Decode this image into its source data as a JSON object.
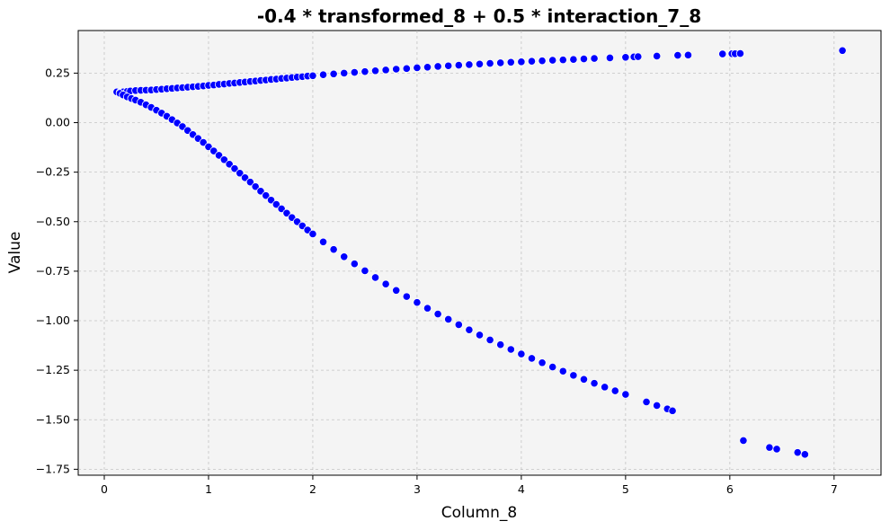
{
  "chart_data": {
    "type": "scatter",
    "title": "-0.4 * transformed_8 + 0.5 * interaction_7_8",
    "xlabel": "Column_8",
    "ylabel": "Value",
    "xlim": [
      -0.25,
      7.45
    ],
    "ylim": [
      -1.78,
      0.465
    ],
    "xticks": [
      0,
      1,
      2,
      3,
      4,
      5,
      6,
      7
    ],
    "xtick_labels": [
      "0",
      "1",
      "2",
      "3",
      "4",
      "5",
      "6",
      "7"
    ],
    "yticks": [
      0.25,
      0.0,
      -0.25,
      -0.5,
      -0.75,
      -1.0,
      -1.25,
      -1.5,
      -1.75
    ],
    "ytick_labels": [
      "0.25",
      "0.00",
      "−0.25",
      "−0.50",
      "−0.75",
      "−1.00",
      "−1.25",
      "−1.50",
      "−1.75"
    ],
    "grid": true,
    "point_color": "#0000ff",
    "background_color": "#f4f4f4",
    "series": [
      {
        "points": [
          [
            0.12,
            0.155
          ],
          [
            0.15,
            0.152
          ],
          [
            0.18,
            0.155
          ],
          [
            0.22,
            0.158
          ],
          [
            0.25,
            0.16
          ],
          [
            0.3,
            0.162
          ],
          [
            0.35,
            0.163
          ],
          [
            0.4,
            0.164
          ],
          [
            0.45,
            0.165
          ],
          [
            0.5,
            0.167
          ],
          [
            0.55,
            0.169
          ],
          [
            0.6,
            0.171
          ],
          [
            0.65,
            0.173
          ],
          [
            0.7,
            0.175
          ],
          [
            0.75,
            0.177
          ],
          [
            0.8,
            0.179
          ],
          [
            0.85,
            0.181
          ],
          [
            0.9,
            0.183
          ],
          [
            0.95,
            0.185
          ],
          [
            1.0,
            0.188
          ],
          [
            1.05,
            0.19
          ],
          [
            1.1,
            0.193
          ],
          [
            1.15,
            0.195
          ],
          [
            1.2,
            0.198
          ],
          [
            1.25,
            0.2
          ],
          [
            1.3,
            0.203
          ],
          [
            1.35,
            0.205
          ],
          [
            1.4,
            0.208
          ],
          [
            1.45,
            0.21
          ],
          [
            1.5,
            0.213
          ],
          [
            1.55,
            0.215
          ],
          [
            1.6,
            0.218
          ],
          [
            1.65,
            0.22
          ],
          [
            1.7,
            0.223
          ],
          [
            1.75,
            0.225
          ],
          [
            1.8,
            0.228
          ],
          [
            1.85,
            0.23
          ],
          [
            1.9,
            0.232
          ],
          [
            1.95,
            0.235
          ],
          [
            2.0,
            0.237
          ],
          [
            2.1,
            0.242
          ],
          [
            2.2,
            0.246
          ],
          [
            2.3,
            0.25
          ],
          [
            2.4,
            0.254
          ],
          [
            2.5,
            0.258
          ],
          [
            2.6,
            0.262
          ],
          [
            2.7,
            0.266
          ],
          [
            2.8,
            0.27
          ],
          [
            2.9,
            0.273
          ],
          [
            3.0,
            0.277
          ],
          [
            3.1,
            0.28
          ],
          [
            3.2,
            0.284
          ],
          [
            3.3,
            0.287
          ],
          [
            3.4,
            0.29
          ],
          [
            3.5,
            0.293
          ],
          [
            3.6,
            0.296
          ],
          [
            3.7,
            0.299
          ],
          [
            3.8,
            0.302
          ],
          [
            3.9,
            0.305
          ],
          [
            4.0,
            0.307
          ],
          [
            4.1,
            0.31
          ],
          [
            4.2,
            0.312
          ],
          [
            4.3,
            0.315
          ],
          [
            4.4,
            0.317
          ],
          [
            4.5,
            0.319
          ],
          [
            4.6,
            0.322
          ],
          [
            4.7,
            0.324
          ],
          [
            4.85,
            0.327
          ],
          [
            5.0,
            0.33
          ],
          [
            5.08,
            0.332
          ],
          [
            5.12,
            0.333
          ],
          [
            5.3,
            0.336
          ],
          [
            5.5,
            0.34
          ],
          [
            5.6,
            0.341
          ],
          [
            5.93,
            0.347
          ],
          [
            6.02,
            0.348
          ],
          [
            6.05,
            0.348
          ],
          [
            6.1,
            0.349
          ],
          [
            7.08,
            0.364
          ]
        ]
      },
      {
        "points": [
          [
            0.15,
            0.148
          ],
          [
            0.18,
            0.14
          ],
          [
            0.22,
            0.13
          ],
          [
            0.26,
            0.122
          ],
          [
            0.3,
            0.114
          ],
          [
            0.35,
            0.103
          ],
          [
            0.4,
            0.09
          ],
          [
            0.45,
            0.077
          ],
          [
            0.5,
            0.063
          ],
          [
            0.55,
            0.048
          ],
          [
            0.6,
            0.032
          ],
          [
            0.65,
            0.015
          ],
          [
            0.7,
            -0.002
          ],
          [
            0.75,
            -0.02
          ],
          [
            0.8,
            -0.04
          ],
          [
            0.85,
            -0.06
          ],
          [
            0.9,
            -0.08
          ],
          [
            0.95,
            -0.1
          ],
          [
            1.0,
            -0.122
          ],
          [
            1.05,
            -0.143
          ],
          [
            1.1,
            -0.165
          ],
          [
            1.15,
            -0.187
          ],
          [
            1.2,
            -0.21
          ],
          [
            1.25,
            -0.232
          ],
          [
            1.3,
            -0.255
          ],
          [
            1.35,
            -0.278
          ],
          [
            1.4,
            -0.3
          ],
          [
            1.45,
            -0.323
          ],
          [
            1.5,
            -0.346
          ],
          [
            1.55,
            -0.368
          ],
          [
            1.6,
            -0.391
          ],
          [
            1.65,
            -0.413
          ],
          [
            1.7,
            -0.435
          ],
          [
            1.75,
            -0.457
          ],
          [
            1.8,
            -0.479
          ],
          [
            1.85,
            -0.5
          ],
          [
            1.9,
            -0.521
          ],
          [
            1.95,
            -0.542
          ],
          [
            2.0,
            -0.562
          ],
          [
            2.1,
            -0.602
          ],
          [
            2.2,
            -0.64
          ],
          [
            2.3,
            -0.677
          ],
          [
            2.4,
            -0.713
          ],
          [
            2.5,
            -0.748
          ],
          [
            2.6,
            -0.782
          ],
          [
            2.7,
            -0.815
          ],
          [
            2.8,
            -0.847
          ],
          [
            2.9,
            -0.878
          ],
          [
            3.0,
            -0.908
          ],
          [
            3.1,
            -0.937
          ],
          [
            3.2,
            -0.966
          ],
          [
            3.3,
            -0.993
          ],
          [
            3.4,
            -1.02
          ],
          [
            3.5,
            -1.046
          ],
          [
            3.6,
            -1.072
          ],
          [
            3.7,
            -1.097
          ],
          [
            3.8,
            -1.121
          ],
          [
            3.9,
            -1.145
          ],
          [
            4.0,
            -1.168
          ],
          [
            4.1,
            -1.19
          ],
          [
            4.2,
            -1.212
          ],
          [
            4.3,
            -1.234
          ],
          [
            4.4,
            -1.255
          ],
          [
            4.5,
            -1.276
          ],
          [
            4.6,
            -1.296
          ],
          [
            4.7,
            -1.316
          ],
          [
            4.8,
            -1.335
          ],
          [
            4.9,
            -1.354
          ],
          [
            5.0,
            -1.372
          ],
          [
            5.2,
            -1.41
          ],
          [
            5.3,
            -1.428
          ],
          [
            5.4,
            -1.445
          ],
          [
            5.45,
            -1.455
          ],
          [
            6.13,
            -1.605
          ],
          [
            6.38,
            -1.64
          ],
          [
            6.45,
            -1.648
          ],
          [
            6.65,
            -1.665
          ],
          [
            6.72,
            -1.675
          ]
        ]
      }
    ]
  }
}
